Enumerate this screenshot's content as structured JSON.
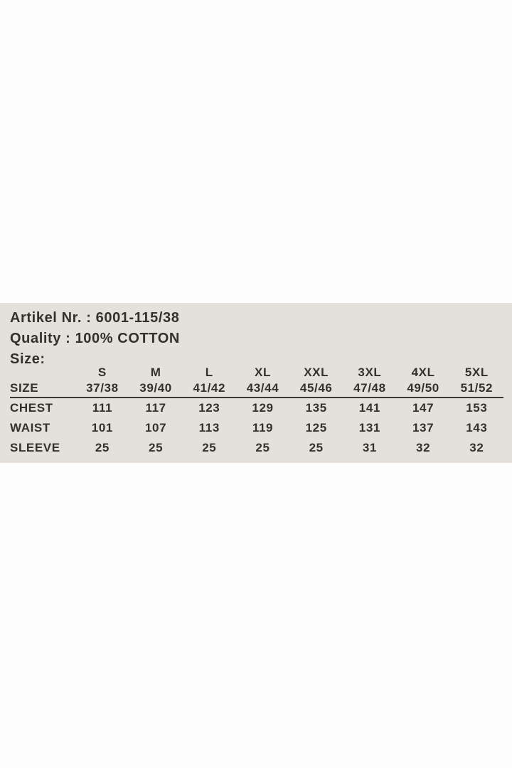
{
  "info": {
    "artikel": "Artikel Nr. : 6001-115/38",
    "quality": "Quality : 100% COTTON",
    "size_heading": "Size:"
  },
  "size_table": {
    "row_header_label": "SIZE",
    "columns": [
      {
        "size": "S",
        "range": "37/38"
      },
      {
        "size": "M",
        "range": "39/40"
      },
      {
        "size": "L",
        "range": "41/42"
      },
      {
        "size": "XL",
        "range": "43/44"
      },
      {
        "size": "XXL",
        "range": "45/46"
      },
      {
        "size": "3XL",
        "range": "47/48"
      },
      {
        "size": "4XL",
        "range": "49/50"
      },
      {
        "size": "5XL",
        "range": "51/52"
      }
    ],
    "rows": [
      {
        "label": "CHEST",
        "values": [
          "111",
          "117",
          "123",
          "129",
          "135",
          "141",
          "147",
          "153"
        ]
      },
      {
        "label": "WAIST",
        "values": [
          "101",
          "107",
          "113",
          "119",
          "125",
          "131",
          "137",
          "143"
        ]
      },
      {
        "label": "SLEEVE",
        "values": [
          "25",
          "25",
          "25",
          "25",
          "25",
          "31",
          "32",
          "32"
        ]
      }
    ]
  },
  "colors": {
    "page_background": "#fdfdfd",
    "panel_background": "#e4e1dc",
    "text": "#34312d",
    "rule": "#3c3833"
  }
}
